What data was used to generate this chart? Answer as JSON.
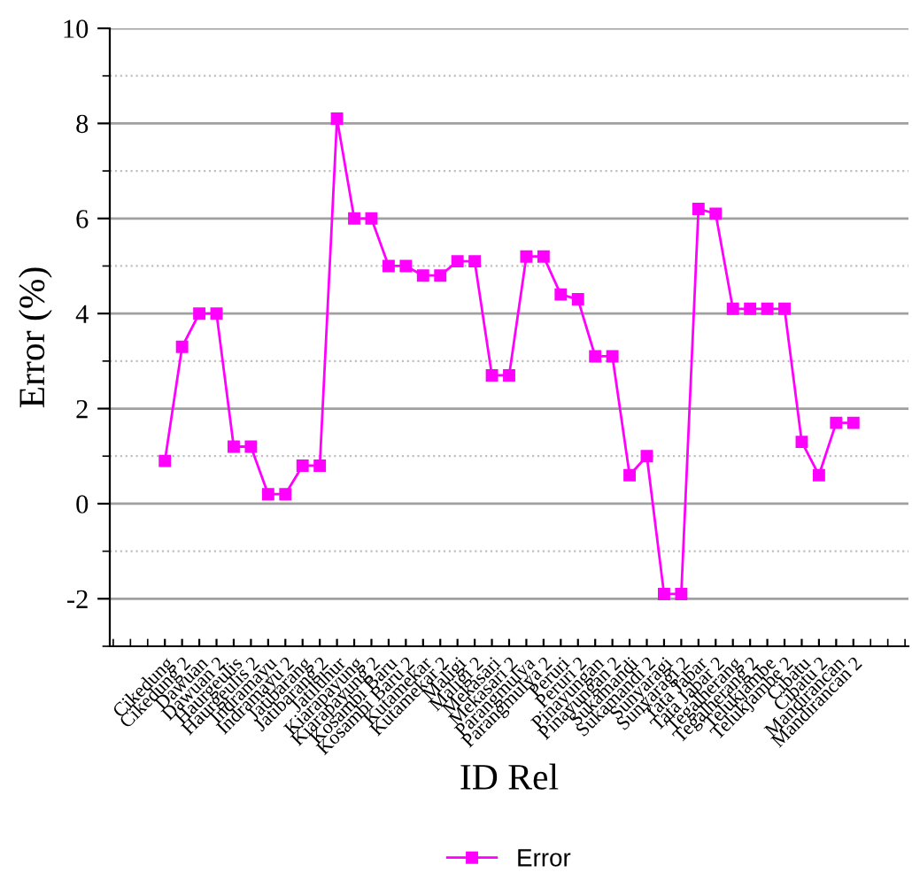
{
  "chart_data": {
    "type": "line",
    "xlabel": "ID Rel",
    "ylabel": "Error (%)",
    "categories": [
      "Cikedung",
      "Cikedung 2",
      "Dawuan",
      "Dawuan 2",
      "Haurgeulis",
      "Haurgeulis 2",
      "Indramayu",
      "Indramayu 2",
      "Jatibarang",
      "Jatibarang 2",
      "Jatiluhur",
      "Kiarapayung",
      "Kiarapayung 2",
      "Kosambi Baru",
      "Kosambi Baru 2",
      "Kutamekar",
      "Kutamekar 2",
      "Maligi",
      "Maligi 2",
      "Mekasari",
      "Mekasari 2",
      "Parangmulya",
      "Parangmulya 2",
      "Peruri",
      "Peruri 2",
      "Pinayungan",
      "Pinayungan 2",
      "Sukamandi",
      "Sukamandi 2",
      "Sunyaragi",
      "Sunyaragi 2",
      "Tata Jabar",
      "Tata Jabar 2",
      "Tegalherang",
      "Tegalherang 2",
      "Telukjambe",
      "Telukjambe 2",
      "Cibatu",
      "Cibatu 2",
      "Mandirancan",
      "Mandirancan 2"
    ],
    "series": [
      {
        "name": "Error",
        "color": "#ff00ff",
        "values": [
          0.9,
          3.3,
          4.0,
          4.0,
          1.2,
          1.2,
          0.2,
          0.2,
          0.8,
          0.8,
          8.1,
          6.0,
          6.0,
          5.0,
          5.0,
          4.8,
          4.8,
          5.1,
          5.1,
          2.7,
          2.7,
          5.2,
          5.2,
          4.4,
          4.3,
          3.1,
          3.1,
          0.6,
          1.0,
          -1.9,
          -1.9,
          6.2,
          6.1,
          4.1,
          4.1,
          4.1,
          4.1,
          1.3,
          0.6,
          1.7,
          1.7
        ]
      }
    ],
    "ylim": [
      -3,
      10
    ],
    "yticks": [
      -2,
      0,
      2,
      4,
      6,
      8,
      10
    ],
    "grid": "y",
    "legend": "bottom",
    "marker": "square",
    "line_style": "solid"
  }
}
